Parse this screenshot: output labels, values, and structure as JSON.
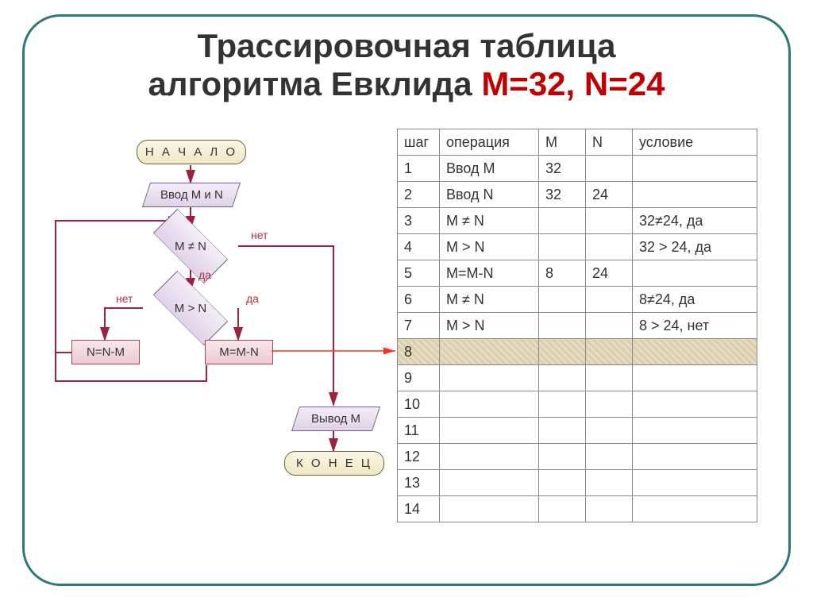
{
  "title_line1": "Трассировочная таблица",
  "title_line2_a": "алгоритма Евклида ",
  "title_line2_b": "M=32, N=24",
  "title_color_main": "#333333",
  "title_color_highlight": "#c00000",
  "flow": {
    "start": "Н А Ч А Л О",
    "input": "Ввод M и N",
    "cond1": "M ≠ N",
    "cond1_no": "нет",
    "cond1_yes": "да",
    "cond2": "M > N",
    "cond2_no": "нет",
    "cond2_yes": "да",
    "proc_left": "N=N-M",
    "proc_right": "M=M-N",
    "output": "Вывод M",
    "end": "К О Н Е Ц",
    "colors": {
      "term_fill_top": "#faf6e4",
      "term_fill_bot": "#efe7c4",
      "term_border": "#6a6340",
      "proc_fill_top": "#f8e7eb",
      "proc_fill_bot": "#edc9d2",
      "proc_border": "#9a4a5a",
      "io_fill_top": "#f4eef6",
      "io_fill_bot": "#e0d2e8",
      "io_border": "#7a5a8a",
      "arrow": "#a02040",
      "highlight_line": "#ff3020"
    }
  },
  "table": {
    "headers": {
      "step": "шаг",
      "op": "операция",
      "m": "M",
      "n": "N",
      "cond": "условие"
    },
    "col_widths": {
      "step": 36,
      "op": 108,
      "m": 42,
      "n": 42,
      "cond": 140
    },
    "highlight_step": 8,
    "highlight_fill": "#e6dcc0",
    "border_color": "#888888",
    "font_size": 18,
    "rows": [
      {
        "step": "1",
        "op": "Ввод M",
        "m": "32",
        "n": "",
        "cond": ""
      },
      {
        "step": "2",
        "op": "Ввод N",
        "m": "32",
        "n": "24",
        "cond": ""
      },
      {
        "step": "3",
        "op": "M ≠ N",
        "m": "",
        "n": "",
        "cond": "32≠24, да"
      },
      {
        "step": "4",
        "op": "M > N",
        "m": "",
        "n": "",
        "cond": "32 > 24, да"
      },
      {
        "step": "5",
        "op": "M=M-N",
        "m": "8",
        "n": "24",
        "cond": ""
      },
      {
        "step": "6",
        "op": "M ≠ N",
        "m": "",
        "n": "",
        "cond": "8≠24, да"
      },
      {
        "step": "7",
        "op": "M > N",
        "m": "",
        "n": "",
        "cond": "8 > 24, нет"
      },
      {
        "step": "8",
        "op": "",
        "m": "",
        "n": "",
        "cond": ""
      },
      {
        "step": "9",
        "op": "",
        "m": "",
        "n": "",
        "cond": ""
      },
      {
        "step": "10",
        "op": "",
        "m": "",
        "n": "",
        "cond": ""
      },
      {
        "step": "11",
        "op": "",
        "m": "",
        "n": "",
        "cond": ""
      },
      {
        "step": "12",
        "op": "",
        "m": "",
        "n": "",
        "cond": ""
      },
      {
        "step": "13",
        "op": "",
        "m": "",
        "n": "",
        "cond": ""
      },
      {
        "step": "14",
        "op": "",
        "m": "",
        "n": "",
        "cond": ""
      }
    ]
  },
  "frame_border_color": "#2a7a72",
  "frame_border_radius": 48
}
